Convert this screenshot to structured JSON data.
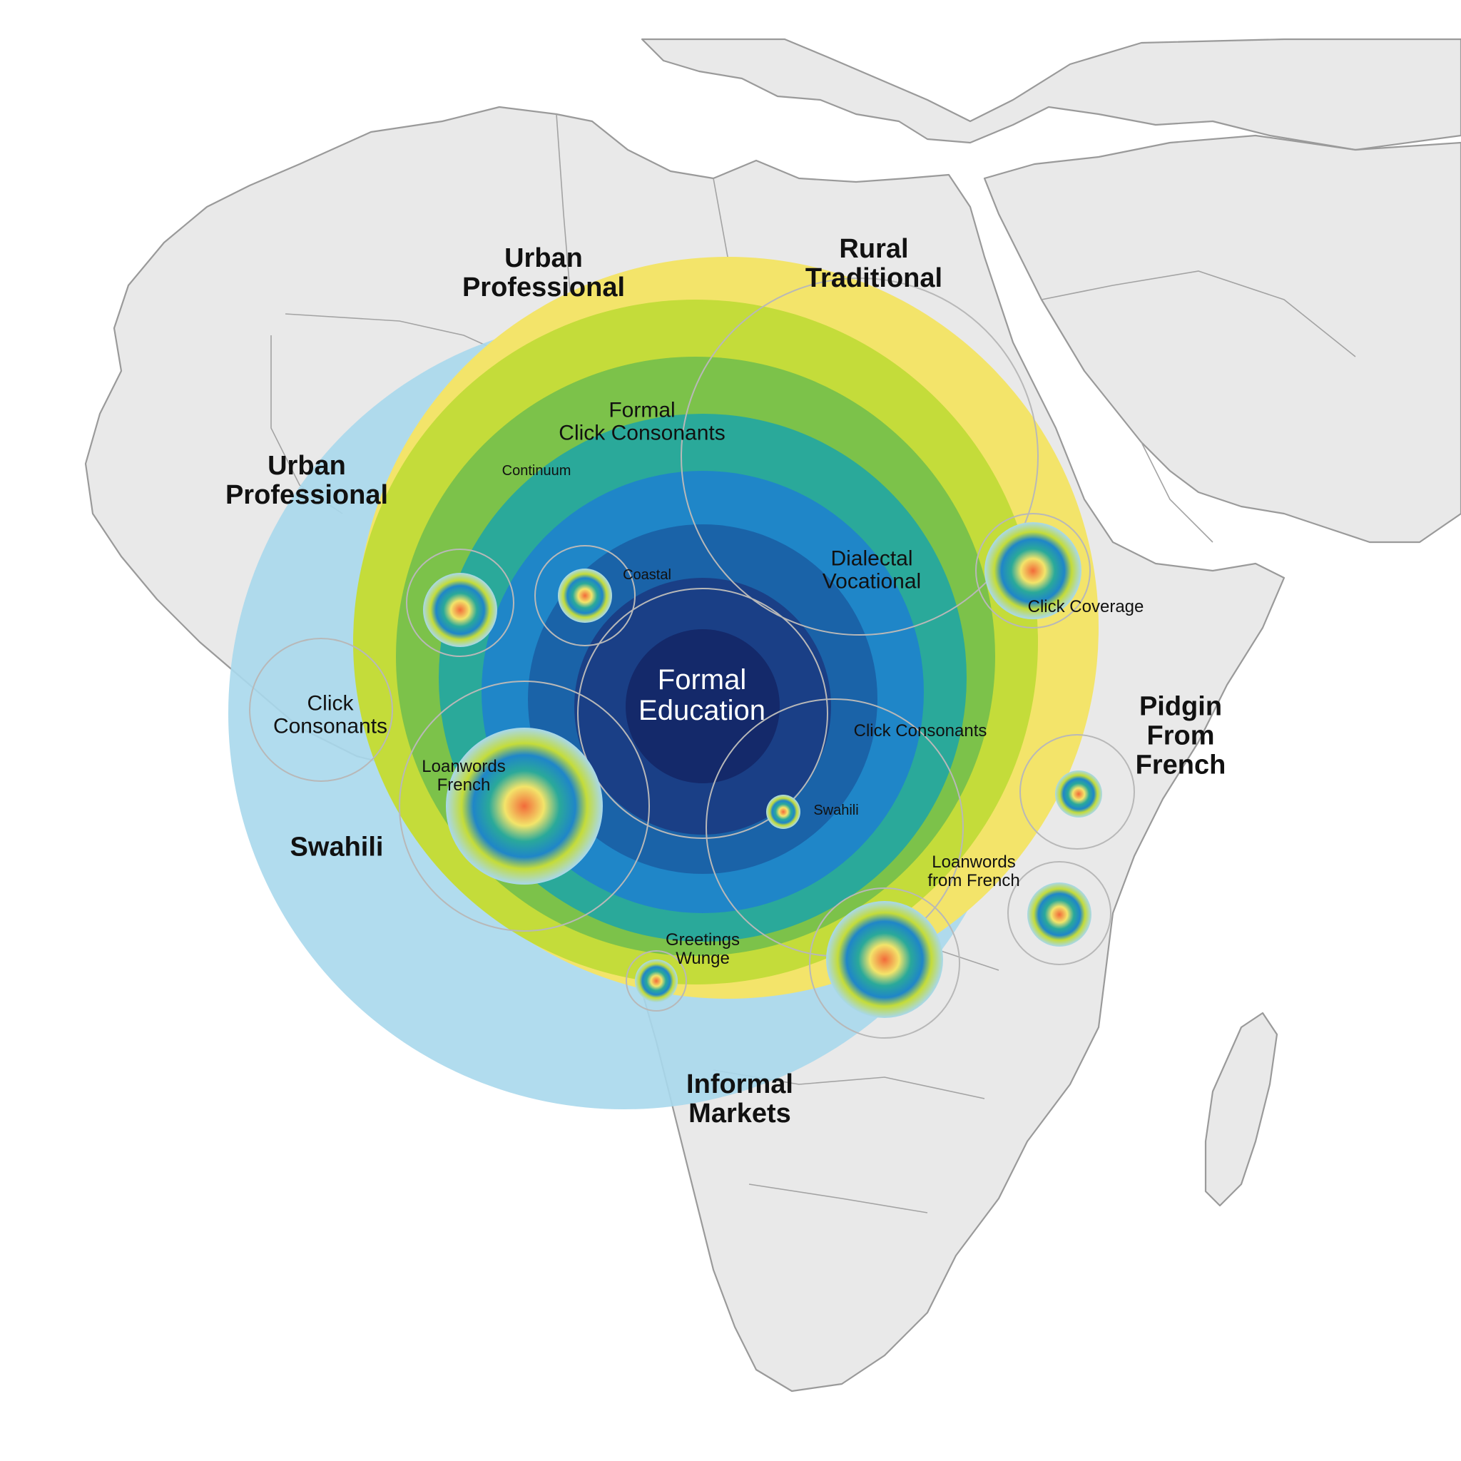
{
  "labels": {
    "urban_professional_top": "Urban\nProfessional",
    "rural_traditional": "Rural\nTraditional",
    "formal_click_consonants": "Formal\nClick Consonants",
    "urban_professional_left": "Urban\nProfessional",
    "continuum": "Continuum",
    "coastal": "Coastal",
    "dialectal_vocational": "Dialectal\nVocational",
    "click_coverage": "Click Coverage",
    "formal_education": "Formal\nEducation",
    "click_consonants_left": "Click\nConsonants",
    "click_consonants_right": "Click Consonants",
    "pidgin_from_french": "Pidgin\nFrom\nFrench",
    "loanwords_french_left": "Loanwords\nFrench",
    "swahili_small": "Swahili",
    "swahili_left": "Swahili",
    "loanwords_from_french": "Loanwords\nfrom French",
    "greetings_wunge": "Greetings\nWunge",
    "informal_markets": "Informal\nMarkets"
  },
  "colors": {
    "land": "#e9e9e9",
    "outer_blue": "#a8d8ec",
    "yellow": "#f3e46a",
    "green_light": "#c4dc3a",
    "green": "#7cc24a",
    "teal": "#2aa99a",
    "blue": "#1f86c8",
    "navy": "#1a3f86",
    "core": "#14296a",
    "hotspot": "#f26b3a"
  },
  "icons": [
    "map-of-africa-and-middle-east",
    "concentric-ring-hotspot"
  ]
}
